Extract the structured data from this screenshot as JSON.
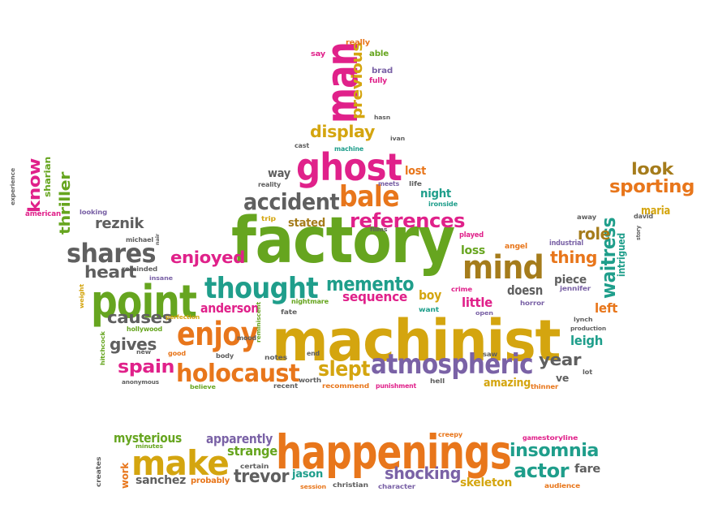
{
  "palette": {
    "green": "#66a51f",
    "gold": "#d4a50f",
    "pink": "#e0218a",
    "teal": "#1f9e8b",
    "orange": "#e8761b",
    "purple": "#7a62a6",
    "brown": "#a57c1b",
    "grey": "#5f5f5f"
  },
  "words": [
    {
      "text": "machinist",
      "color": "gold"
    },
    {
      "text": "factory",
      "color": "green"
    },
    {
      "text": "happenings",
      "color": "orange"
    },
    {
      "text": "point",
      "color": "green"
    },
    {
      "text": "thought",
      "color": "teal"
    },
    {
      "text": "ghost",
      "color": "pink"
    },
    {
      "text": "make",
      "color": "gold"
    },
    {
      "text": "mind",
      "color": "brown"
    },
    {
      "text": "enjoy",
      "color": "orange"
    },
    {
      "text": "holocaust",
      "color": "orange"
    },
    {
      "text": "atmospheric",
      "color": "purple"
    },
    {
      "text": "bale",
      "color": "orange"
    },
    {
      "text": "accident",
      "color": "grey"
    },
    {
      "text": "shares",
      "color": "grey"
    },
    {
      "text": "man",
      "color": "pink"
    },
    {
      "text": "references",
      "color": "pink"
    },
    {
      "text": "insomnia",
      "color": "teal"
    },
    {
      "text": "actor",
      "color": "teal"
    },
    {
      "text": "memento",
      "color": "teal"
    },
    {
      "text": "sporting",
      "color": "orange"
    },
    {
      "text": "look",
      "color": "brown"
    },
    {
      "text": "waitress",
      "color": "teal"
    },
    {
      "text": "slept",
      "color": "gold"
    },
    {
      "text": "causes",
      "color": "grey"
    },
    {
      "text": "spain",
      "color": "pink"
    },
    {
      "text": "gives",
      "color": "grey"
    },
    {
      "text": "thing",
      "color": "orange"
    },
    {
      "text": "display",
      "color": "gold"
    },
    {
      "text": "enjoyed",
      "color": "pink"
    },
    {
      "text": "heart",
      "color": "grey"
    },
    {
      "text": "shocking",
      "color": "purple"
    },
    {
      "text": "trevor",
      "color": "grey"
    },
    {
      "text": "sequence",
      "color": "pink"
    },
    {
      "text": "anderson",
      "color": "pink"
    },
    {
      "text": "role",
      "color": "brown"
    },
    {
      "text": "year",
      "color": "grey"
    },
    {
      "text": "reznik",
      "color": "grey"
    },
    {
      "text": "thriller",
      "color": "green"
    },
    {
      "text": "know",
      "color": "pink"
    },
    {
      "text": "previous",
      "color": "gold"
    },
    {
      "text": "mysterious",
      "color": "green"
    },
    {
      "text": "apparently",
      "color": "purple"
    },
    {
      "text": "strange",
      "color": "green"
    },
    {
      "text": "sanchez",
      "color": "grey"
    },
    {
      "text": "skeleton",
      "color": "gold"
    },
    {
      "text": "fare",
      "color": "grey"
    },
    {
      "text": "leigh",
      "color": "teal"
    },
    {
      "text": "left",
      "color": "orange"
    },
    {
      "text": "piece",
      "color": "grey"
    },
    {
      "text": "doesn",
      "color": "grey"
    },
    {
      "text": "little",
      "color": "pink"
    },
    {
      "text": "boy",
      "color": "gold"
    },
    {
      "text": "loss",
      "color": "green"
    },
    {
      "text": "night",
      "color": "teal"
    },
    {
      "text": "lost",
      "color": "orange"
    },
    {
      "text": "stated",
      "color": "brown"
    },
    {
      "text": "way",
      "color": "grey"
    },
    {
      "text": "maria",
      "color": "gold"
    },
    {
      "text": "intrigued",
      "color": "teal"
    },
    {
      "text": "amazing",
      "color": "gold"
    },
    {
      "text": "jason",
      "color": "teal"
    },
    {
      "text": "work",
      "color": "orange"
    },
    {
      "text": "sharian",
      "color": "green"
    },
    {
      "text": "ve",
      "color": "grey"
    },
    {
      "text": "really",
      "color": "orange"
    },
    {
      "text": "say",
      "color": "pink"
    },
    {
      "text": "able",
      "color": "green"
    },
    {
      "text": "brad",
      "color": "purple"
    },
    {
      "text": "fully",
      "color": "pink"
    },
    {
      "text": "hasn",
      "color": "grey"
    },
    {
      "text": "ivan",
      "color": "grey"
    },
    {
      "text": "cast",
      "color": "grey"
    },
    {
      "text": "machine",
      "color": "teal"
    },
    {
      "text": "reality",
      "color": "grey"
    },
    {
      "text": "meets",
      "color": "purple"
    },
    {
      "text": "life",
      "color": "grey"
    },
    {
      "text": "ironside",
      "color": "teal"
    },
    {
      "text": "trip",
      "color": "gold"
    },
    {
      "text": "films",
      "color": "grey"
    },
    {
      "text": "played",
      "color": "pink"
    },
    {
      "text": "angel",
      "color": "orange"
    },
    {
      "text": "industrial",
      "color": "purple"
    },
    {
      "text": "away",
      "color": "grey"
    },
    {
      "text": "david",
      "color": "grey"
    },
    {
      "text": "story",
      "color": "grey"
    },
    {
      "text": "experience",
      "color": "grey"
    },
    {
      "text": "american",
      "color": "pink"
    },
    {
      "text": "looking",
      "color": "purple"
    },
    {
      "text": "michael",
      "color": "grey"
    },
    {
      "text": "nair",
      "color": "grey"
    },
    {
      "text": "reminded",
      "color": "grey"
    },
    {
      "text": "insane",
      "color": "purple"
    },
    {
      "text": "weight",
      "color": "gold"
    },
    {
      "text": "perfection",
      "color": "gold"
    },
    {
      "text": "hollywood",
      "color": "green"
    },
    {
      "text": "hitchcock",
      "color": "green"
    },
    {
      "text": "new",
      "color": "grey"
    },
    {
      "text": "good",
      "color": "orange"
    },
    {
      "text": "body",
      "color": "grey"
    },
    {
      "text": "notes",
      "color": "grey"
    },
    {
      "text": "end",
      "color": "grey"
    },
    {
      "text": "worth",
      "color": "grey"
    },
    {
      "text": "recent",
      "color": "grey"
    },
    {
      "text": "anonymous",
      "color": "grey"
    },
    {
      "text": "believe",
      "color": "green"
    },
    {
      "text": "recommend",
      "color": "orange"
    },
    {
      "text": "punishment",
      "color": "pink"
    },
    {
      "text": "hell",
      "color": "grey"
    },
    {
      "text": "saw",
      "color": "grey"
    },
    {
      "text": "thinner",
      "color": "orange"
    },
    {
      "text": "lot",
      "color": "grey"
    },
    {
      "text": "production",
      "color": "grey"
    },
    {
      "text": "lynch",
      "color": "grey"
    },
    {
      "text": "horror",
      "color": "purple"
    },
    {
      "text": "jennifer",
      "color": "purple"
    },
    {
      "text": "open",
      "color": "purple"
    },
    {
      "text": "want",
      "color": "teal"
    },
    {
      "text": "crime",
      "color": "pink"
    },
    {
      "text": "fate",
      "color": "grey"
    },
    {
      "text": "nightmare",
      "color": "green"
    },
    {
      "text": "reminiscent",
      "color": "green"
    },
    {
      "text": "mood",
      "color": "grey"
    },
    {
      "text": "creates",
      "color": "grey"
    },
    {
      "text": "minutes",
      "color": "green"
    },
    {
      "text": "probably",
      "color": "orange"
    },
    {
      "text": "certain",
      "color": "grey"
    },
    {
      "text": "session",
      "color": "orange"
    },
    {
      "text": "christian",
      "color": "grey"
    },
    {
      "text": "character",
      "color": "purple"
    },
    {
      "text": "creepy",
      "color": "orange"
    },
    {
      "text": "game",
      "color": "pink"
    },
    {
      "text": "storyline",
      "color": "pink"
    },
    {
      "text": "audience",
      "color": "orange"
    }
  ]
}
